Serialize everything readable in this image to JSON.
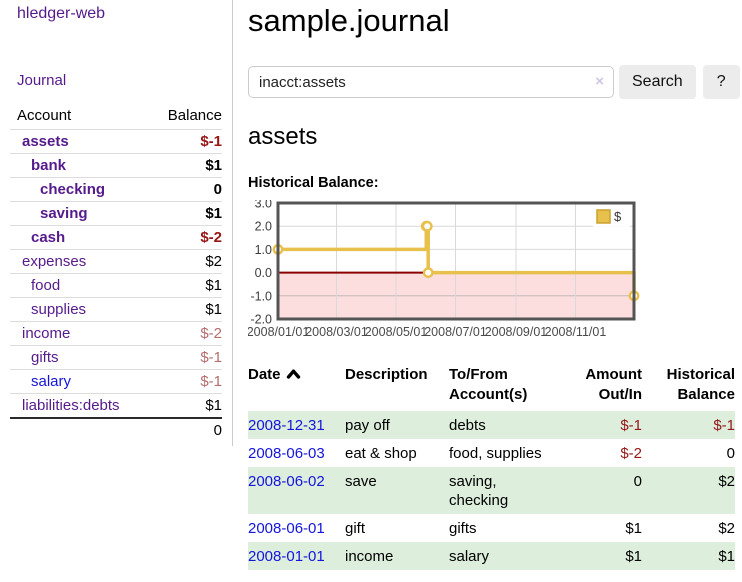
{
  "app": {
    "brand": "hledger-web",
    "nav_journal": "Journal"
  },
  "sidebar": {
    "header": {
      "account": "Account",
      "balance": "Balance"
    },
    "accounts": [
      {
        "name": "assets",
        "balance": "$-1",
        "depth": 0,
        "bold": true,
        "neg": "strong"
      },
      {
        "name": "bank",
        "balance": "$1",
        "depth": 1,
        "bold": true,
        "neg": "none"
      },
      {
        "name": "checking",
        "balance": "0",
        "depth": 2,
        "bold": true,
        "neg": "none"
      },
      {
        "name": "saving",
        "balance": "$1",
        "depth": 2,
        "bold": true,
        "neg": "none"
      },
      {
        "name": "cash",
        "balance": "$-2",
        "depth": 1,
        "bold": true,
        "neg": "strong"
      },
      {
        "name": "expenses",
        "balance": "$2",
        "depth": 0,
        "bold": false,
        "neg": "none"
      },
      {
        "name": "food",
        "balance": "$1",
        "depth": 1,
        "bold": false,
        "neg": "none"
      },
      {
        "name": "supplies",
        "balance": "$1",
        "depth": 1,
        "bold": false,
        "neg": "none"
      },
      {
        "name": "income",
        "balance": "$-2",
        "depth": 0,
        "bold": false,
        "neg": "soft"
      },
      {
        "name": "gifts",
        "balance": "$-1",
        "depth": 1,
        "bold": false,
        "neg": "soft"
      },
      {
        "name": "salary",
        "balance": "$-1",
        "depth": 1,
        "bold": false,
        "neg": "soft",
        "link": "blue"
      },
      {
        "name": "liabilities:debts",
        "balance": "$1",
        "depth": 0,
        "bold": false,
        "neg": "none"
      }
    ],
    "total": "0"
  },
  "main": {
    "title": "sample.journal",
    "search": {
      "value": "inacct:assets",
      "clear_icon": "×",
      "button_label": "Search",
      "help_label": "?"
    },
    "account_heading": "assets",
    "chart_label": "Historical Balance:"
  },
  "chart_data": {
    "type": "line",
    "title": "Historical Balance",
    "step": true,
    "legend": "$",
    "legend_position": "top-right",
    "grid": true,
    "ylim": [
      -2,
      3
    ],
    "y_ticks": [
      "3.0",
      "2.0",
      "1.0",
      "0.0",
      "-1.0",
      "-2.0"
    ],
    "y_tick_values": [
      3,
      2,
      1,
      0,
      -1,
      -2
    ],
    "x_ticks": [
      "2008/01/01",
      "2008/03/01",
      "2008/05/01",
      "2008/07/01",
      "2008/09/01",
      "2008/11/01"
    ],
    "x_tick_days": [
      0,
      60,
      121,
      182,
      244,
      305
    ],
    "x_span_days": 365,
    "series": [
      {
        "name": "$",
        "color": "#e8c04c",
        "point_fill": "#ffffff",
        "points": [
          {
            "date": "2008-01-01",
            "day": 0,
            "value": 1
          },
          {
            "date": "2008-06-01",
            "day": 152,
            "value": 2
          },
          {
            "date": "2008-06-02",
            "day": 153,
            "value": 2
          },
          {
            "date": "2008-06-03",
            "day": 154,
            "value": 0
          },
          {
            "date": "2008-12-31",
            "day": 365,
            "value": -1
          }
        ]
      }
    ],
    "negative_region_color": "#fcdede",
    "zero_line_color": "#8b0000",
    "gridline_color": "#d9d9d9",
    "border_color": "#545454"
  },
  "register": {
    "columns": [
      {
        "label": "Date",
        "align": "left",
        "sorted": "asc"
      },
      {
        "label": "Description",
        "align": "left"
      },
      {
        "label": "To/From Account(s)",
        "align": "left"
      },
      {
        "label": "Amount Out/In",
        "align": "right"
      },
      {
        "label": "Historical Balance",
        "align": "right"
      }
    ],
    "rows": [
      {
        "date": "2008-12-31",
        "description": "pay off",
        "accounts": "debts",
        "amount": "$-1",
        "amount_neg": true,
        "balance": "$-1",
        "balance_neg": true,
        "shaded": true
      },
      {
        "date": "2008-06-03",
        "description": "eat & shop",
        "accounts": "food, supplies",
        "amount": "$-2",
        "amount_neg": true,
        "balance": "0",
        "balance_neg": false,
        "shaded": false
      },
      {
        "date": "2008-06-02",
        "description": "save",
        "accounts": "saving,\nchecking",
        "amount": "0",
        "amount_neg": false,
        "balance": "$2",
        "balance_neg": false,
        "shaded": true
      },
      {
        "date": "2008-06-01",
        "description": "gift",
        "accounts": "gifts",
        "amount": "$1",
        "amount_neg": false,
        "balance": "$2",
        "balance_neg": false,
        "shaded": false
      },
      {
        "date": "2008-01-01",
        "description": "income",
        "accounts": "salary",
        "amount": "$1",
        "amount_neg": false,
        "balance": "$1",
        "balance_neg": false,
        "shaded": true
      }
    ]
  },
  "colors": {
    "link_purple": "#551a8b",
    "link_blue": "#1414dd",
    "neg_strong": "#961616",
    "neg_soft": "#b56d6d",
    "row_green": "#ddeedd",
    "button_bg": "#ececec"
  }
}
